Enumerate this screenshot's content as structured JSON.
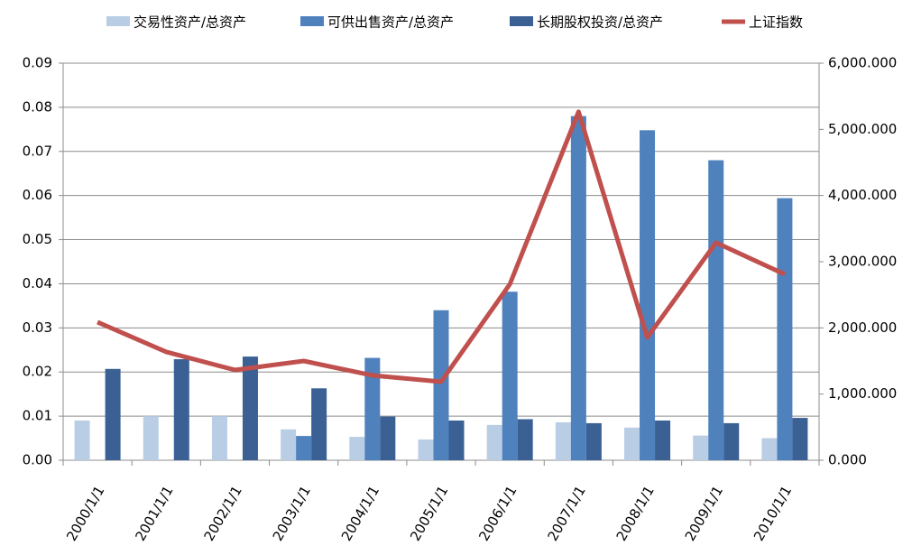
{
  "chart_data": {
    "type": "bar-line",
    "categories": [
      "2000/1/1",
      "2001/1/1",
      "2002/1/1",
      "2003/1/1",
      "2004/1/1",
      "2005/1/1",
      "2006/1/1",
      "2007/1/1",
      "2008/1/1",
      "2009/1/1",
      "2010/1/1"
    ],
    "series": [
      {
        "name": "交易性资产/总资产",
        "type": "bar",
        "color": "#b9cde5",
        "values": [
          0.009,
          0.01,
          0.01,
          0.007,
          0.0053,
          0.0047,
          0.008,
          0.0086,
          0.0074,
          0.0056,
          0.005
        ]
      },
      {
        "name": "可供出售资产/总资产",
        "type": "bar",
        "color": "#4f81bd",
        "values": [
          null,
          null,
          null,
          0.0055,
          0.0232,
          0.034,
          0.0382,
          0.078,
          0.0748,
          0.068,
          0.0594
        ]
      },
      {
        "name": "长期股权投资/总资产",
        "type": "bar",
        "color": "#3a6094",
        "values": [
          0.0207,
          0.0229,
          0.0235,
          0.0163,
          0.0099,
          0.009,
          0.0093,
          0.0084,
          0.009,
          0.0084,
          0.0096
        ]
      },
      {
        "name": "上证指数",
        "type": "line",
        "axis": "y2",
        "color": "#c0504d",
        "values": [
          2087,
          1637,
          1364,
          1500,
          1282,
          1187,
          2660,
          5266,
          1855,
          3288,
          2810
        ]
      }
    ],
    "ylim": [
      0,
      0.09
    ],
    "yticks": [
      {
        "value": 0,
        "label": "0.00"
      },
      0.01,
      0.02,
      0.03,
      0.04,
      0.05,
      0.06,
      0.07,
      0.08,
      0.09
    ],
    "y2lim": [
      0,
      6000
    ],
    "y2ticks": [
      {
        "value": 0,
        "label": "0.000"
      },
      {
        "value": 1000,
        "label": "1,000.000"
      },
      {
        "value": 2000,
        "label": "2,000.000"
      },
      {
        "value": 3000,
        "label": "3,000.000"
      },
      {
        "value": 4000,
        "label": "4,000.000"
      },
      {
        "value": 5000,
        "label": "5,000.000"
      },
      {
        "value": 6000,
        "label": "6,000.000"
      }
    ],
    "grid": true,
    "legend": "top"
  }
}
